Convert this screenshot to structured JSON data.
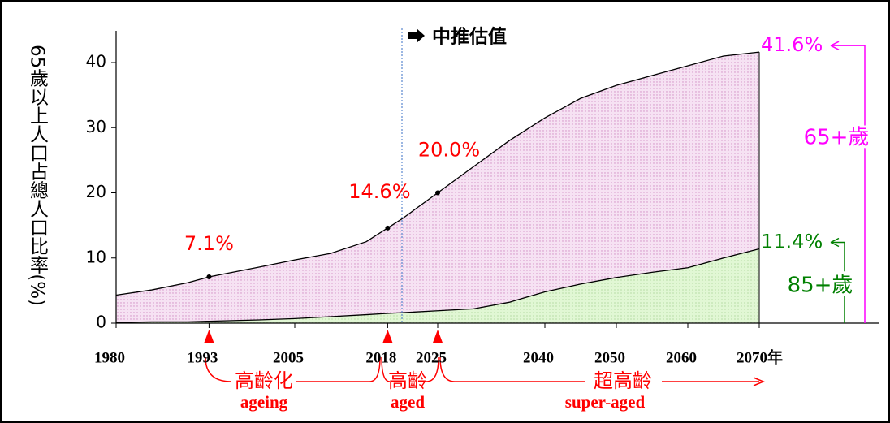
{
  "chart_data": {
    "type": "area",
    "y_axis_label": "65歲以上人口占總人口比率(%)",
    "projection_label": "中推估值",
    "projection_start": 2020,
    "x": [
      1980,
      1985,
      1990,
      1993,
      2000,
      2005,
      2010,
      2015,
      2018,
      2020,
      2025,
      2030,
      2035,
      2040,
      2045,
      2050,
      2055,
      2060,
      2065,
      2070
    ],
    "series": [
      {
        "name": "65+歲",
        "color": "#f3d6ee",
        "line_color": "#000000",
        "label_color": "#ff00ff",
        "end_label": "41.6%",
        "values": [
          4.3,
          5.1,
          6.2,
          7.1,
          8.6,
          9.7,
          10.7,
          12.5,
          14.6,
          16.0,
          20.0,
          24.0,
          28.0,
          31.5,
          34.5,
          36.5,
          38.0,
          39.5,
          41.0,
          41.6
        ]
      },
      {
        "name": "85+歲",
        "color": "#dcf5cc",
        "line_color": "#000000",
        "label_color": "#008000",
        "end_label": "11.4%",
        "values": [
          0.1,
          0.2,
          0.2,
          0.3,
          0.5,
          0.7,
          1.0,
          1.3,
          1.5,
          1.6,
          1.9,
          2.2,
          3.2,
          4.8,
          6.0,
          7.0,
          7.8,
          8.5,
          10.0,
          11.4
        ]
      }
    ],
    "milestones": [
      {
        "year": 1993,
        "value": 7.1,
        "label": "7.1%"
      },
      {
        "year": 2018,
        "value": 14.6,
        "label": "14.6%"
      },
      {
        "year": 2025,
        "value": 20.0,
        "label": "20.0%"
      }
    ],
    "phases": [
      {
        "name": "高齡化",
        "english": "ageing"
      },
      {
        "name": "高齡",
        "english": "aged"
      },
      {
        "name": "超高齡",
        "english": "super-aged"
      }
    ],
    "xlim": [
      1980,
      2070
    ],
    "xticks": [
      1980,
      1993,
      2005,
      2018,
      2025,
      2040,
      2050,
      2060,
      {
        "value": 2070,
        "label": "2070年"
      }
    ],
    "ylim": [
      0,
      40
    ],
    "yticks": [
      0,
      10,
      20,
      30,
      40
    ],
    "grid": false
  }
}
